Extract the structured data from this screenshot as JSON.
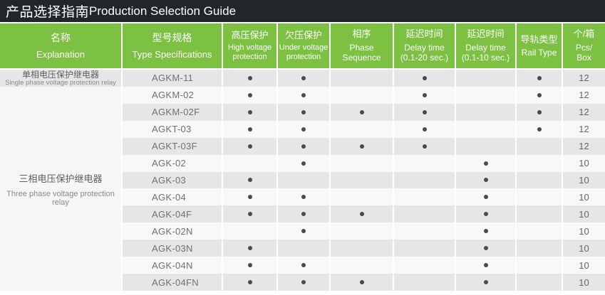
{
  "title": {
    "zh": "产品选择指南",
    "en": "Production Selection Guide"
  },
  "columns": [
    {
      "zh": "名称",
      "en": "Explanation"
    },
    {
      "zh": "型号规格",
      "en": "Type Specifications"
    },
    {
      "zh": "高压保护",
      "en": "High voltage\nprotection"
    },
    {
      "zh": "欠压保护",
      "en": "Under voltage\nprotection"
    },
    {
      "zh": "相序",
      "en": "Phase\nSequence"
    },
    {
      "zh": "延迟时间",
      "en": "Delay time\n(0.1-20 sec.)"
    },
    {
      "zh": "延迟时间",
      "en": "Delay time\n(0.1-10 sec.)"
    },
    {
      "zh": "导轨类型",
      "en": "Rail Type"
    },
    {
      "zh": "个/箱",
      "en": "Pcs/\nBox"
    }
  ],
  "groups": [
    {
      "zh": "单相电压保护继电器",
      "en": "Single phase voltage protection relay"
    },
    {
      "zh": "三相电压保护继电器",
      "en": "Three phase voltage protection relay"
    }
  ],
  "feature_keys": [
    "high_voltage_protection",
    "under_voltage_protection",
    "phase_sequence",
    "delay_time_0_1_20_sec",
    "delay_time_0_1_10_sec",
    "rail_type"
  ],
  "rows": [
    {
      "model": "AGKM-11",
      "features": {
        "high_voltage_protection": true,
        "under_voltage_protection": true,
        "phase_sequence": false,
        "delay_time_0_1_20_sec": true,
        "delay_time_0_1_10_sec": false,
        "rail_type": true
      },
      "pcs_per_box": "12"
    },
    {
      "model": "AGKM-02",
      "features": {
        "high_voltage_protection": true,
        "under_voltage_protection": true,
        "phase_sequence": false,
        "delay_time_0_1_20_sec": true,
        "delay_time_0_1_10_sec": false,
        "rail_type": true
      },
      "pcs_per_box": "12"
    },
    {
      "model": "AGKM-02F",
      "features": {
        "high_voltage_protection": true,
        "under_voltage_protection": true,
        "phase_sequence": true,
        "delay_time_0_1_20_sec": true,
        "delay_time_0_1_10_sec": false,
        "rail_type": true
      },
      "pcs_per_box": "12"
    },
    {
      "model": "AGKT-03",
      "features": {
        "high_voltage_protection": true,
        "under_voltage_protection": true,
        "phase_sequence": false,
        "delay_time_0_1_20_sec": true,
        "delay_time_0_1_10_sec": false,
        "rail_type": true
      },
      "pcs_per_box": "12"
    },
    {
      "model": "AGKT-03F",
      "features": {
        "high_voltage_protection": true,
        "under_voltage_protection": true,
        "phase_sequence": true,
        "delay_time_0_1_20_sec": true,
        "delay_time_0_1_10_sec": false,
        "rail_type": false
      },
      "pcs_per_box": "12"
    },
    {
      "model": "AGK-02",
      "features": {
        "high_voltage_protection": false,
        "under_voltage_protection": true,
        "phase_sequence": false,
        "delay_time_0_1_20_sec": false,
        "delay_time_0_1_10_sec": true,
        "rail_type": false
      },
      "pcs_per_box": "10"
    },
    {
      "model": "AGK-03",
      "features": {
        "high_voltage_protection": true,
        "under_voltage_protection": false,
        "phase_sequence": false,
        "delay_time_0_1_20_sec": false,
        "delay_time_0_1_10_sec": true,
        "rail_type": false
      },
      "pcs_per_box": "10"
    },
    {
      "model": "AGK-04",
      "features": {
        "high_voltage_protection": true,
        "under_voltage_protection": true,
        "phase_sequence": false,
        "delay_time_0_1_20_sec": false,
        "delay_time_0_1_10_sec": true,
        "rail_type": false
      },
      "pcs_per_box": "10"
    },
    {
      "model": "AGK-04F",
      "features": {
        "high_voltage_protection": true,
        "under_voltage_protection": true,
        "phase_sequence": true,
        "delay_time_0_1_20_sec": false,
        "delay_time_0_1_10_sec": true,
        "rail_type": false
      },
      "pcs_per_box": "10"
    },
    {
      "model": "AGK-02N",
      "features": {
        "high_voltage_protection": false,
        "under_voltage_protection": true,
        "phase_sequence": false,
        "delay_time_0_1_20_sec": false,
        "delay_time_0_1_10_sec": true,
        "rail_type": false
      },
      "pcs_per_box": "10"
    },
    {
      "model": "AGK-03N",
      "features": {
        "high_voltage_protection": true,
        "under_voltage_protection": false,
        "phase_sequence": false,
        "delay_time_0_1_20_sec": false,
        "delay_time_0_1_10_sec": true,
        "rail_type": false
      },
      "pcs_per_box": "10"
    },
    {
      "model": "AGK-04N",
      "features": {
        "high_voltage_protection": true,
        "under_voltage_protection": true,
        "phase_sequence": false,
        "delay_time_0_1_20_sec": false,
        "delay_time_0_1_10_sec": true,
        "rail_type": false
      },
      "pcs_per_box": "10"
    },
    {
      "model": "AGK-04FN",
      "features": {
        "high_voltage_protection": true,
        "under_voltage_protection": true,
        "phase_sequence": true,
        "delay_time_0_1_20_sec": false,
        "delay_time_0_1_10_sec": true,
        "rail_type": false
      },
      "pcs_per_box": "10"
    }
  ],
  "colors": {
    "accent_green": "#7cc142",
    "title_bar_bg": "#22262b",
    "stripe_dark": "#e6e6e6",
    "stripe_light": "#f8f8f8",
    "dot": "#4a4a4a"
  }
}
